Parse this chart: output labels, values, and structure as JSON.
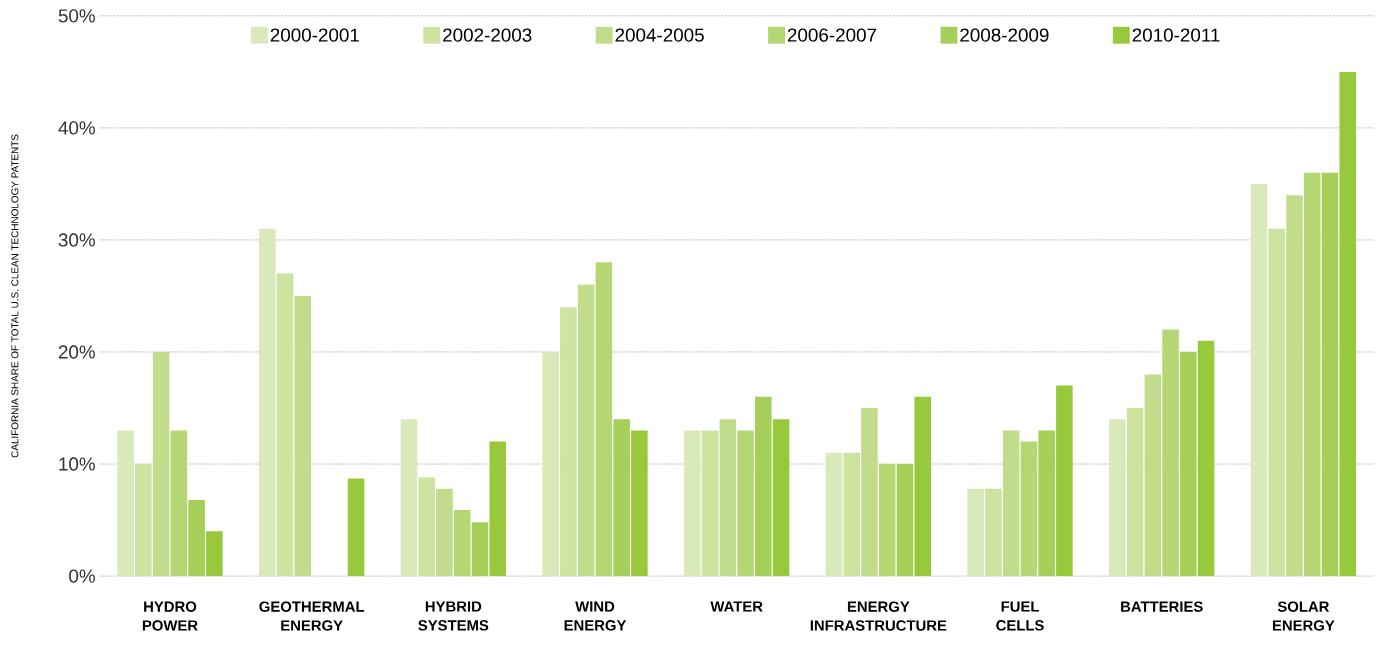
{
  "chart_data": {
    "type": "bar",
    "ylabel": "CALIFORNIA SHARE OF TOTAL U.S. CLEAN TECHNOLOGY PATENTS",
    "categories": [
      "HYDRO POWER",
      "GEOTHERMAL ENERGY",
      "HYBRID SYSTEMS",
      "WIND ENERGY",
      "WATER",
      "ENERGY INFRASTRUCTURE",
      "FUEL CELLS",
      "BATTERIES",
      "SOLAR ENERGY"
    ],
    "series": [
      {
        "name": "2000-2001",
        "color": "#d9e9b9",
        "values": [
          13,
          31,
          14,
          20,
          13,
          11,
          7.8,
          14,
          35
        ]
      },
      {
        "name": "2002-2003",
        "color": "#cde3a0",
        "values": [
          10,
          27,
          8.8,
          24,
          13,
          11,
          7.8,
          15,
          31
        ]
      },
      {
        "name": "2004-2005",
        "color": "#c1dc8a",
        "values": [
          20,
          25,
          7.8,
          26,
          14,
          15,
          13,
          18,
          34
        ]
      },
      {
        "name": "2006-2007",
        "color": "#b4d774",
        "values": [
          13,
          null,
          5.9,
          28,
          13,
          10,
          12,
          22,
          36
        ]
      },
      {
        "name": "2008-2009",
        "color": "#a5cf58",
        "values": [
          6.8,
          null,
          4.8,
          14,
          16,
          10,
          13,
          20,
          36
        ]
      },
      {
        "name": "2010-2011",
        "color": "#98c93c",
        "values": [
          4,
          8.7,
          12,
          13,
          14,
          16,
          17,
          21,
          45
        ]
      }
    ],
    "ylim": [
      0,
      50
    ],
    "yticks": [
      {
        "value": 0,
        "label": "0%"
      },
      {
        "value": 10,
        "label": "10%"
      },
      {
        "value": 20,
        "label": "20%"
      },
      {
        "value": 30,
        "label": "30%"
      },
      {
        "value": 40,
        "label": "40%"
      },
      {
        "value": 50,
        "label": "50%"
      }
    ],
    "grid": "y",
    "legend": "top"
  }
}
